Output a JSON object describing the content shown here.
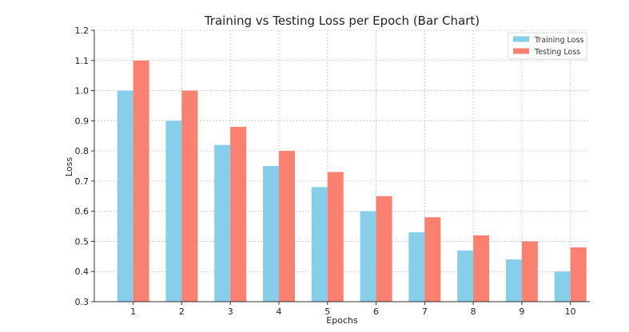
{
  "chart_data": {
    "type": "bar",
    "title": "Training vs Testing Loss per Epoch (Bar Chart)",
    "xlabel": "Epochs",
    "ylabel": "Loss",
    "categories": [
      "1",
      "2",
      "3",
      "4",
      "5",
      "6",
      "7",
      "8",
      "9",
      "10"
    ],
    "series": [
      {
        "name": "Training Loss",
        "color": "#87CEEB",
        "values": [
          1.0,
          0.9,
          0.82,
          0.75,
          0.68,
          0.6,
          0.53,
          0.47,
          0.44,
          0.4
        ]
      },
      {
        "name": "Testing Loss",
        "color": "#FA8072",
        "values": [
          1.1,
          1.0,
          0.88,
          0.8,
          0.73,
          0.65,
          0.58,
          0.52,
          0.5,
          0.48
        ]
      }
    ],
    "ylim": [
      0.3,
      1.2
    ],
    "yticks": [
      "0.3",
      "0.4",
      "0.5",
      "0.6",
      "0.7",
      "0.8",
      "0.9",
      "1.0",
      "1.1",
      "1.2"
    ],
    "grid": true,
    "legend_position": "top-right"
  }
}
